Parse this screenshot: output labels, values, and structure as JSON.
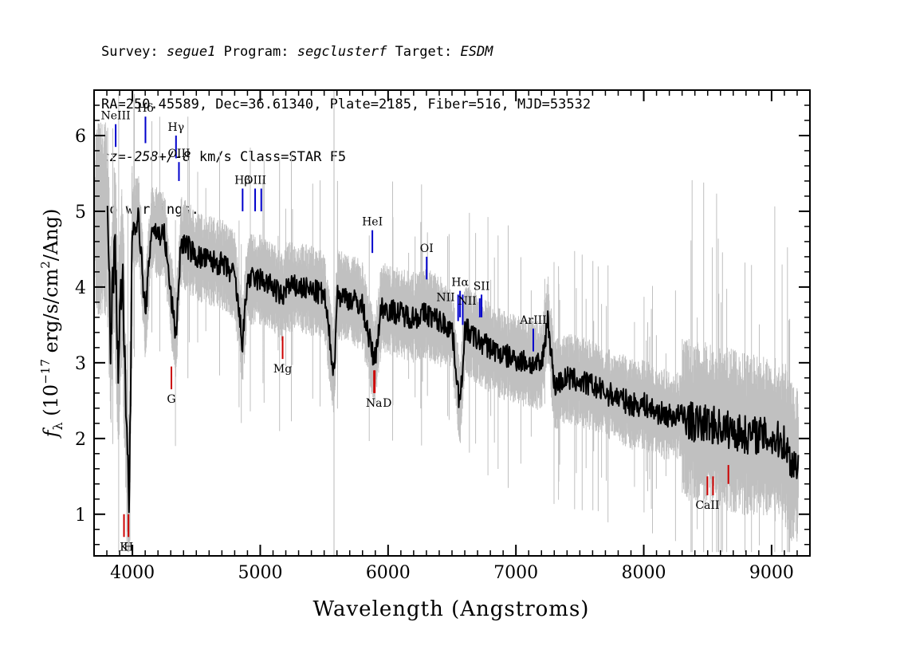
{
  "header": {
    "survey_label": "Survey:",
    "survey": "segue1",
    "program_label": "Program:",
    "program": "segclusterf",
    "target_label": "Target:",
    "target": "ESDM",
    "coords_line": "RA=250.45589, Dec=36.61340, Plate=2185, Fiber=516, MJD=53532",
    "cz_value": "cz=-258+/-8",
    "cz_rest": " km/s Class=STAR F5",
    "warnings": "No warnings."
  },
  "chart_data": {
    "type": "line",
    "xlabel": "Wavelength (Angstroms)",
    "ylabel": "fλ (10^-17 erg/s/cm^2/Ang)",
    "ylabel_parts": {
      "f": "f",
      "lambda": "λ",
      "open": " (10",
      "exp1": "−17",
      "mid": " erg/s/cm",
      "exp2": "2",
      "close": "/Ang)"
    },
    "xlim": [
      3700,
      9300
    ],
    "ylim": [
      0.45,
      6.6
    ],
    "x_ticks": [
      4000,
      5000,
      6000,
      7000,
      8000,
      9000
    ],
    "x_tick_labels": [
      "4000",
      "5000",
      "6000",
      "7000",
      "8000",
      "9000"
    ],
    "y_ticks": [
      1,
      2,
      3,
      4,
      5,
      6
    ],
    "y_tick_labels": [
      "1",
      "2",
      "3",
      "4",
      "5",
      "6"
    ],
    "grid": false,
    "sky_line_marker_x": 5577,
    "series": [
      {
        "role": "spectrum",
        "color": "#000000",
        "x": [
          3805,
          3830,
          3860,
          3890,
          3920,
          3950,
          3975,
          4000,
          4050,
          4101,
          4150,
          4200,
          4250,
          4300,
          4340,
          4380,
          4450,
          4500,
          4600,
          4700,
          4800,
          4861,
          4900,
          5000,
          5100,
          5175,
          5200,
          5300,
          5400,
          5500,
          5577,
          5600,
          5700,
          5800,
          5893,
          5950,
          6000,
          6100,
          6200,
          6300,
          6400,
          6500,
          6563,
          6600,
          6700,
          6800,
          6900,
          7000,
          7100,
          7200,
          7250,
          7300,
          7400,
          7500,
          7600,
          7700,
          7800,
          7900,
          8000,
          8100,
          8200,
          8300,
          8400,
          8500,
          8600,
          8700,
          8800,
          8900,
          9000,
          9100,
          9150,
          9200,
          9210
        ],
        "y": [
          4.9,
          3.3,
          4.6,
          3.0,
          4.3,
          2.2,
          1.15,
          4.8,
          4.9,
          3.6,
          4.8,
          4.7,
          4.7,
          3.9,
          3.35,
          4.6,
          4.5,
          4.4,
          4.35,
          4.3,
          4.15,
          3.25,
          4.1,
          4.1,
          4.0,
          3.85,
          4.0,
          4.0,
          3.95,
          3.9,
          2.85,
          3.9,
          3.85,
          3.75,
          3.0,
          3.75,
          3.7,
          3.65,
          3.6,
          3.65,
          3.55,
          3.45,
          2.4,
          3.45,
          3.3,
          3.2,
          3.1,
          3.05,
          3.0,
          2.95,
          3.6,
          2.7,
          2.8,
          2.75,
          2.7,
          2.6,
          2.55,
          2.45,
          2.45,
          2.35,
          2.3,
          2.3,
          2.2,
          2.2,
          2.15,
          2.1,
          2.05,
          2.05,
          2.0,
          1.95,
          1.7,
          1.65,
          1.75
        ]
      },
      {
        "role": "uncertainty",
        "color": "#c0c0c0"
      }
    ],
    "annotations": [
      {
        "label": "NeIII",
        "x": 3869,
        "y0": 5.85,
        "y1": 6.15,
        "color": "#0000cc",
        "side": "above"
      },
      {
        "label": "Hδ",
        "x": 4102,
        "y0": 5.9,
        "y1": 6.25,
        "color": "#0000cc",
        "side": "above"
      },
      {
        "label": "Hγ",
        "x": 4341,
        "y0": 5.7,
        "y1": 6.0,
        "color": "#0000cc",
        "side": "above"
      },
      {
        "label": "OIII",
        "x": 4364,
        "y0": 5.4,
        "y1": 5.65,
        "color": "#0000cc",
        "side": "above"
      },
      {
        "label": "Hβ",
        "x": 4862,
        "y0": 5.0,
        "y1": 5.3,
        "color": "#0000cc",
        "side": "above"
      },
      {
        "label": "OIII",
        "x": 4960,
        "y0": 5.0,
        "y1": 5.3,
        "color": "#0000cc",
        "side": "above"
      },
      {
        "label": "",
        "x": 5008,
        "y0": 5.0,
        "y1": 5.3,
        "color": "#0000cc",
        "side": "above"
      },
      {
        "label": "HeI",
        "x": 5877,
        "y0": 4.45,
        "y1": 4.75,
        "color": "#0000cc",
        "side": "above"
      },
      {
        "label": "OI",
        "x": 6302,
        "y0": 4.1,
        "y1": 4.4,
        "color": "#0000cc",
        "side": "above"
      },
      {
        "label": "NII",
        "x": 6548,
        "y0": 3.55,
        "y1": 3.9,
        "color": "#0000cc",
        "side": "right-label"
      },
      {
        "label": "Hα",
        "x": 6563,
        "y0": 3.6,
        "y1": 3.95,
        "color": "#0000cc",
        "side": "above"
      },
      {
        "label": "",
        "x": 6584,
        "y0": 3.5,
        "y1": 3.9,
        "color": "#0000cc",
        "side": "above"
      },
      {
        "label": "NII",
        "x": 6717,
        "y0": 3.6,
        "y1": 3.85,
        "color": "#0000cc",
        "side": "right-label"
      },
      {
        "label": "SII",
        "x": 6731,
        "y0": 3.6,
        "y1": 3.9,
        "color": "#0000cc",
        "side": "above"
      },
      {
        "label": "ArIII",
        "x": 7136,
        "y0": 3.15,
        "y1": 3.45,
        "color": "#0000cc",
        "side": "above"
      },
      {
        "label": "K",
        "x": 3934,
        "y0": 0.7,
        "y1": 1.0,
        "color": "#cc0000",
        "side": "below"
      },
      {
        "label": "H",
        "x": 3969,
        "y0": 0.7,
        "y1": 1.0,
        "color": "#cc0000",
        "side": "below"
      },
      {
        "label": "G",
        "x": 4305,
        "y0": 2.65,
        "y1": 2.95,
        "color": "#cc0000",
        "side": "below"
      },
      {
        "label": "Mg",
        "x": 5175,
        "y0": 3.05,
        "y1": 3.35,
        "color": "#cc0000",
        "side": "below"
      },
      {
        "label": "Na",
        "x": 5890,
        "y0": 2.6,
        "y1": 2.9,
        "color": "#cc0000",
        "side": "below"
      },
      {
        "label": "D",
        "x": 5896,
        "y0": 2.6,
        "y1": 2.9,
        "color": "#cc0000",
        "side": "below-right"
      },
      {
        "label": "CaII",
        "x": 8498,
        "y0": 1.25,
        "y1": 1.5,
        "color": "#cc0000",
        "side": "below"
      },
      {
        "label": "",
        "x": 8542,
        "y0": 1.25,
        "y1": 1.5,
        "color": "#cc0000",
        "side": "below"
      },
      {
        "label": "",
        "x": 8662,
        "y0": 1.4,
        "y1": 1.65,
        "color": "#cc0000",
        "side": "below"
      }
    ]
  }
}
